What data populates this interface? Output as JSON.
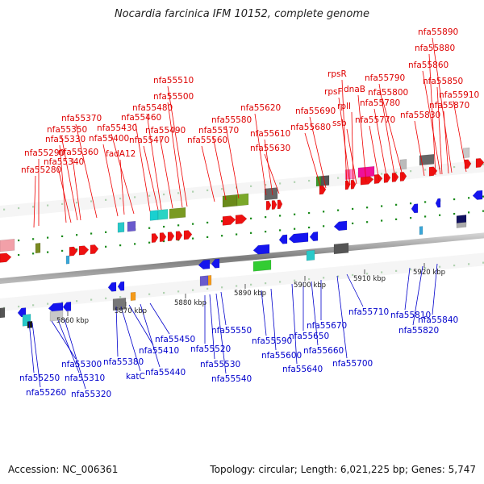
{
  "title": "Nocardia farcinica IFM 10152, complete genome",
  "footer": {
    "accession": "Accession: NC_006361",
    "info": "Topology: circular; Length: 6,021,225 bp; Genes: 5,747"
  },
  "scale_labels": [
    "5860 kbp",
    "5870 kbp",
    "5880 kbp",
    "5890 kbp",
    "5900 kbp",
    "5910 kbp",
    "5920 kbp"
  ],
  "top_labels": [
    "nfa55280",
    "nfa55290",
    "nfa55340",
    "nfa55330",
    "nfa55360",
    "nfa55350",
    "nfa55370",
    "nfa55400",
    "fadA12",
    "nfa55430",
    "nfa55470",
    "nfa55460",
    "nfa55480",
    "nfa55490",
    "nfa55500",
    "nfa55510",
    "nfa55560",
    "nfa55570",
    "nfa55580",
    "nfa55620",
    "nfa55610",
    "nfa55630",
    "nfa55680",
    "nfa55690",
    "rpsR",
    "rpsF",
    "rplI",
    "ssb",
    "dnaB",
    "nfa55770",
    "nfa55780",
    "nfa55790",
    "nfa55800",
    "nfa55830",
    "nfa55870",
    "nfa55850",
    "nfa55860",
    "nfa55880",
    "nfa55890",
    "nfa55910"
  ],
  "bottom_labels": [
    "nfa55250",
    "nfa55260",
    "nfa55300",
    "nfa55310",
    "nfa55320",
    "nfa55380",
    "katC",
    "nfa55410",
    "nfa55440",
    "nfa55450",
    "nfa55520",
    "nfa55530",
    "nfa55540",
    "nfa55550",
    "nfa55590",
    "nfa55600",
    "nfa55640",
    "nfa55650",
    "nfa55660",
    "nfa55670",
    "nfa55700",
    "nfa55710",
    "nfa55810",
    "nfa55820",
    "nfa55840"
  ]
}
